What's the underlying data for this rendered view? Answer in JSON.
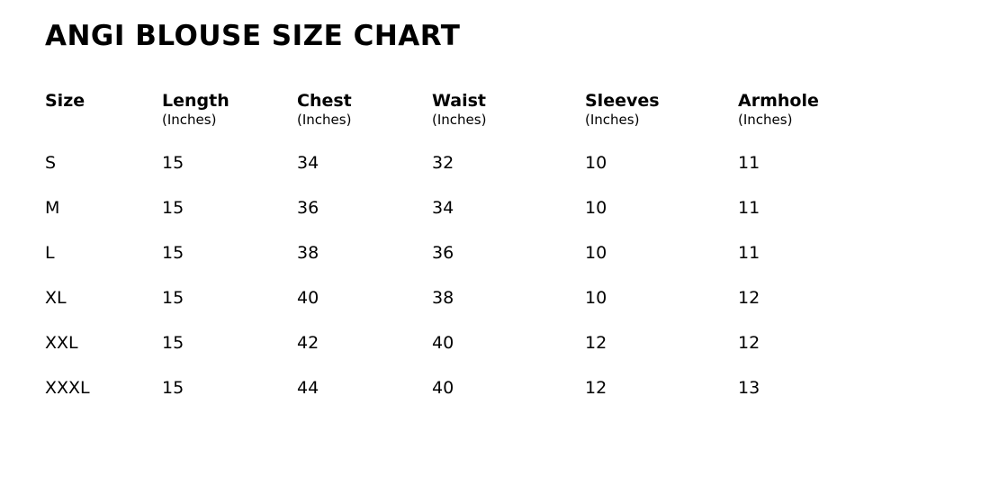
{
  "title": "ANGI BLOUSE SIZE CHART",
  "table": {
    "headers": [
      {
        "label": "Size",
        "unit": ""
      },
      {
        "label": "Length",
        "unit": "(Inches)"
      },
      {
        "label": "Chest",
        "unit": "(Inches)"
      },
      {
        "label": "Waist",
        "unit": "(Inches)"
      },
      {
        "label": "Sleeves",
        "unit": "(Inches)"
      },
      {
        "label": "Armhole",
        "unit": "(Inches)"
      }
    ],
    "rows": [
      {
        "size": "S",
        "length": "15",
        "chest": "34",
        "waist": "32",
        "sleeves": "10",
        "armhole": "11"
      },
      {
        "size": "M",
        "length": "15",
        "chest": "36",
        "waist": "34",
        "sleeves": "10",
        "armhole": "11"
      },
      {
        "size": "L",
        "length": "15",
        "chest": "38",
        "waist": "36",
        "sleeves": "10",
        "armhole": "11"
      },
      {
        "size": "XL",
        "length": "15",
        "chest": "40",
        "waist": "38",
        "sleeves": "10",
        "armhole": "12"
      },
      {
        "size": "XXL",
        "length": "15",
        "chest": "42",
        "waist": "40",
        "sleeves": "12",
        "armhole": "12"
      },
      {
        "size": "XXXL",
        "length": "15",
        "chest": "44",
        "waist": "40",
        "sleeves": "12",
        "armhole": "13"
      }
    ]
  },
  "colors": {
    "text": "#000000",
    "background": "#ffffff"
  },
  "chart_data": {
    "type": "table",
    "title": "ANGI BLOUSE SIZE CHART",
    "columns": [
      "Size",
      "Length (Inches)",
      "Chest (Inches)",
      "Waist (Inches)",
      "Sleeves (Inches)",
      "Armhole (Inches)"
    ],
    "rows": [
      [
        "S",
        15,
        34,
        32,
        10,
        11
      ],
      [
        "M",
        15,
        36,
        34,
        10,
        11
      ],
      [
        "L",
        15,
        38,
        36,
        10,
        11
      ],
      [
        "XL",
        15,
        40,
        38,
        10,
        12
      ],
      [
        "XXL",
        15,
        42,
        40,
        12,
        12
      ],
      [
        "XXXL",
        15,
        44,
        40,
        12,
        13
      ]
    ]
  }
}
